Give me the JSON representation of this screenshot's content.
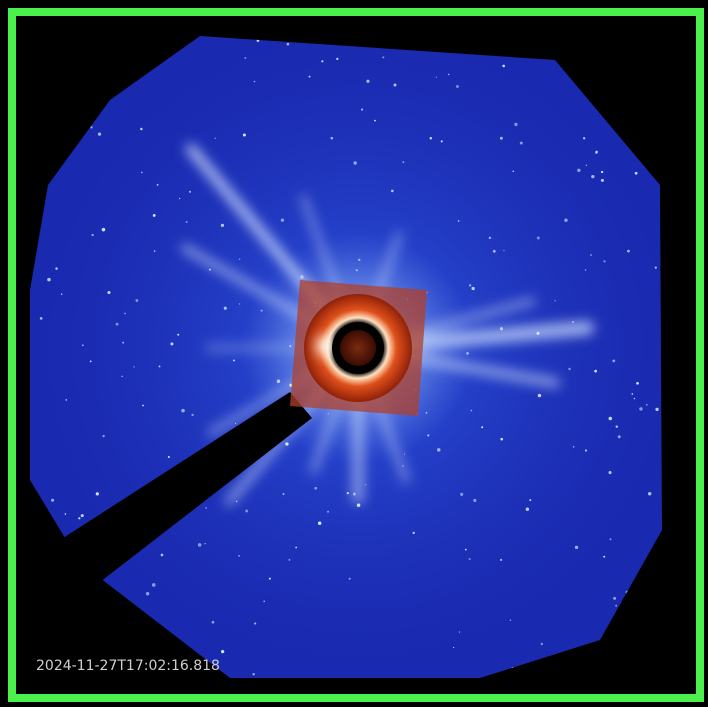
{
  "timestamp": "2024-11-27T17:02:16.818"
}
